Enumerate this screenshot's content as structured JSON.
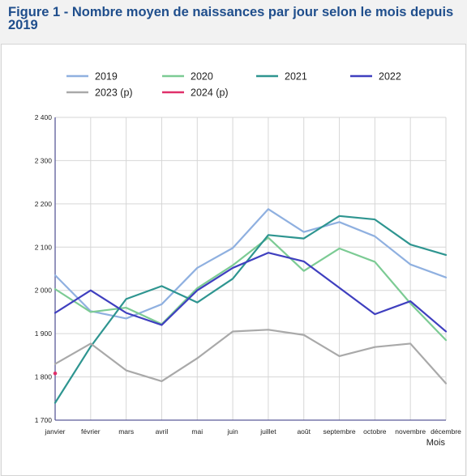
{
  "figure": {
    "title": "Figure 1 - Nombre moyen de naissances par jour selon le mois depuis 2019"
  },
  "chart_data": {
    "type": "line",
    "title": "Figure 1 - Nombre moyen de naissances par jour selon le mois depuis 2019",
    "xlabel": "Mois",
    "ylabel": "",
    "categories": [
      "janvier",
      "février",
      "mars",
      "avril",
      "mai",
      "juin",
      "juillet",
      "août",
      "septembre",
      "octobre",
      "novembre",
      "décembre"
    ],
    "ylim": [
      1700,
      2400
    ],
    "yticks": [
      1700,
      1800,
      1900,
      2000,
      2100,
      2200,
      2300,
      2400
    ],
    "ytick_labels": [
      "1 700",
      "1 800",
      "1 900",
      "2 000",
      "2 100",
      "2 200",
      "2 300",
      "2 400"
    ],
    "grid": true,
    "legend_position": "top",
    "series": [
      {
        "name": "2019",
        "color": "#8fb0e0",
        "values": [
          2035,
          1952,
          1935,
          1968,
          2052,
          2098,
          2188,
          2135,
          2158,
          2125,
          2060,
          2030
        ]
      },
      {
        "name": "2020",
        "color": "#7ccb94",
        "values": [
          2003,
          1950,
          1960,
          1922,
          2005,
          2058,
          2122,
          2045,
          2097,
          2066,
          1970,
          1885
        ]
      },
      {
        "name": "2021",
        "color": "#2e9590",
        "values": [
          1740,
          1870,
          1980,
          2010,
          1972,
          2027,
          2128,
          2120,
          2172,
          2164,
          2106,
          2082
        ]
      },
      {
        "name": "2022",
        "color": "#3f3fbf",
        "values": [
          1948,
          2000,
          1948,
          1920,
          2000,
          2052,
          2087,
          2067,
          2006,
          1945,
          1975,
          1905
        ]
      },
      {
        "name": "2023 (p)",
        "color": "#a9a9a9",
        "values": [
          1830,
          1877,
          1815,
          1790,
          1843,
          1905,
          1909,
          1897,
          1848,
          1869,
          1877,
          1785
        ]
      },
      {
        "name": "2024 (p)",
        "color": "#e0306a",
        "values": [
          1808,
          null,
          null,
          null,
          null,
          null,
          null,
          null,
          null,
          null,
          null,
          null
        ]
      }
    ]
  }
}
